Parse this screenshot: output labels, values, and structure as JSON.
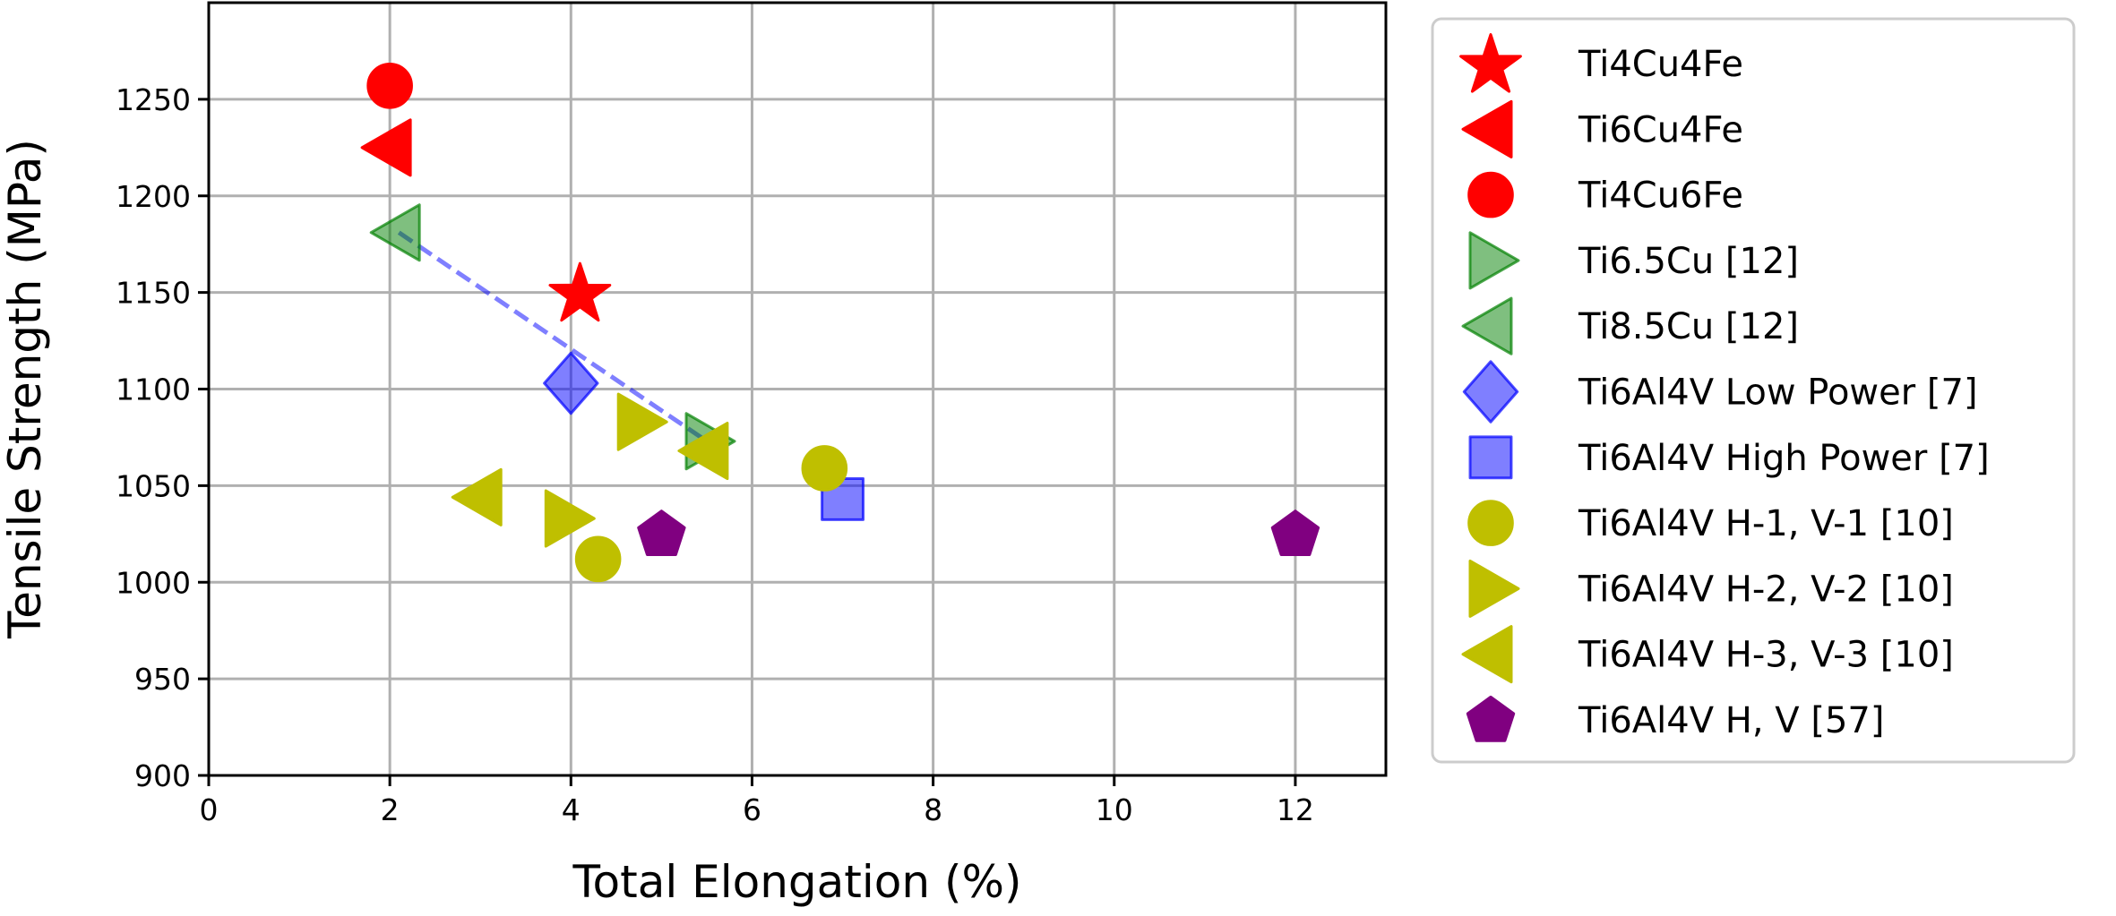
{
  "chart_data": {
    "type": "scatter",
    "title": "",
    "xlabel": "Total Elongation (%)",
    "ylabel": "Tensile Strength (MPa)",
    "xlim": [
      0,
      13
    ],
    "ylim": [
      900,
      1300
    ],
    "xticks": [
      0,
      2,
      4,
      6,
      8,
      10,
      12
    ],
    "yticks": [
      900,
      950,
      1000,
      1050,
      1100,
      1150,
      1200,
      1250
    ],
    "grid": true,
    "legend_position": "outside-right",
    "series": [
      {
        "name": "Ti4Cu4Fe",
        "marker": "star",
        "color": "#ff0000",
        "alpha": 1,
        "points": [
          [
            4.1,
            1150
          ]
        ]
      },
      {
        "name": "Ti6Cu4Fe",
        "marker": "triangle-left",
        "color": "#ff0000",
        "alpha": 1,
        "points": [
          [
            2.0,
            1225
          ]
        ]
      },
      {
        "name": "Ti4Cu6Fe",
        "marker": "circle",
        "color": "#ff0000",
        "alpha": 1,
        "points": [
          [
            2.0,
            1257
          ]
        ]
      },
      {
        "name": "Ti6.5Cu [12]",
        "marker": "triangle-right",
        "color": "#008000",
        "alpha": 0.5,
        "points": [
          [
            5.5,
            1073
          ]
        ]
      },
      {
        "name": "Ti8.5Cu [12]",
        "marker": "triangle-left",
        "color": "#008000",
        "alpha": 0.5,
        "points": [
          [
            2.1,
            1181
          ]
        ]
      },
      {
        "name": "Ti6Al4V Low Power [7]",
        "marker": "diamond",
        "color": "#0000ff",
        "alpha": 0.5,
        "points": [
          [
            4.0,
            1103
          ]
        ]
      },
      {
        "name": "Ti6Al4V High Power [7]",
        "marker": "square",
        "color": "#0000ff",
        "alpha": 0.5,
        "points": [
          [
            7.0,
            1043
          ]
        ]
      },
      {
        "name": "Ti6Al4V H-1, V-1 [10]",
        "marker": "circle",
        "color": "#bfbf00",
        "alpha": 1,
        "points": [
          [
            6.8,
            1059
          ],
          [
            4.3,
            1012
          ]
        ]
      },
      {
        "name": "Ti6Al4V H-2, V-2 [10]",
        "marker": "triangle-right",
        "color": "#bfbf00",
        "alpha": 1,
        "points": [
          [
            4.75,
            1083
          ],
          [
            3.95,
            1033
          ]
        ]
      },
      {
        "name": "Ti6Al4V H-3, V-3 [10]",
        "marker": "triangle-left",
        "color": "#bfbf00",
        "alpha": 1,
        "points": [
          [
            3.0,
            1044
          ],
          [
            5.5,
            1068
          ]
        ]
      },
      {
        "name": "Ti6Al4V H, V [57]",
        "marker": "pentagon",
        "color": "#800080",
        "alpha": 1,
        "points": [
          [
            5.0,
            1025
          ],
          [
            12.0,
            1025
          ]
        ]
      }
    ],
    "trend_line": {
      "style": "dashed",
      "color": "#0000ff",
      "alpha": 0.5,
      "points": [
        [
          2.1,
          1181
        ],
        [
          5.5,
          1073
        ]
      ]
    }
  }
}
